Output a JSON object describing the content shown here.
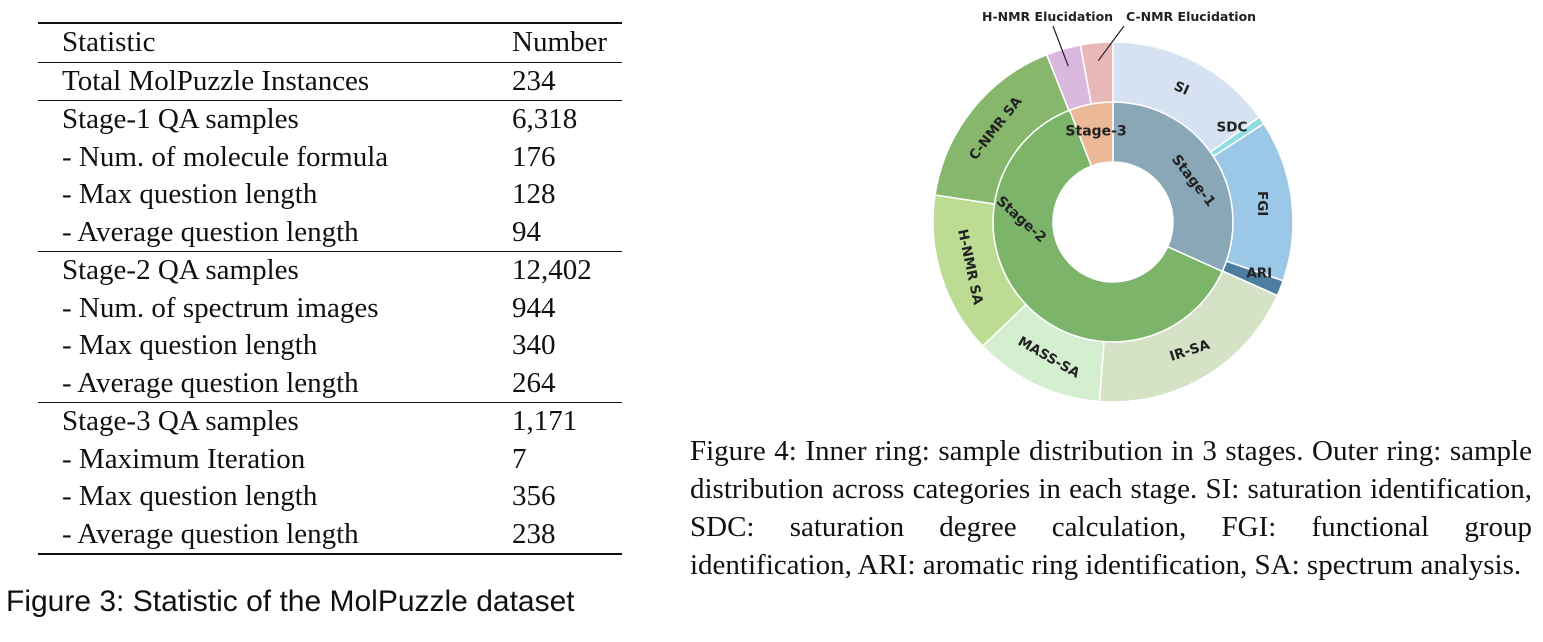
{
  "table": {
    "header": {
      "statistic": "Statistic",
      "number": "Number"
    },
    "rows": [
      {
        "label": "Total MolPuzzle Instances",
        "value": "234",
        "group_start": true
      },
      {
        "label": "Stage-1 QA samples",
        "value": "6,318",
        "group_start": true
      },
      {
        "label": "- Num. of molecule formula",
        "value": "176"
      },
      {
        "label": "- Max question length",
        "value": "128"
      },
      {
        "label": "- Average question length",
        "value": "94"
      },
      {
        "label": "Stage-2 QA samples",
        "value": "12,402",
        "group_start": true
      },
      {
        "label": "- Num. of spectrum images",
        "value": "944"
      },
      {
        "label": "- Max question length",
        "value": "340"
      },
      {
        "label": "- Average question length",
        "value": "264"
      },
      {
        "label": "Stage-3 QA samples",
        "value": "1,171",
        "group_start": true
      },
      {
        "label": "- Maximum Iteration",
        "value": "7"
      },
      {
        "label": "- Max question length",
        "value": "356"
      },
      {
        "label": "- Average question length",
        "value": "238"
      }
    ]
  },
  "figure3_caption": "Figure 3: Statistic of the MolPuzzle dataset",
  "figure4_caption": "Figure 4: Inner ring: sample distribution in 3 stages. Outer ring: sample distribution across categories in each stage. SI: saturation identification, SDC: saturation degree calculation, FGI: functional group identification, ARI: aromatic ring identification, SA: spectrum analysis.",
  "chart_data": {
    "type": "sunburst",
    "inner_ring": [
      {
        "label": "Stage-1",
        "value": 6318,
        "color": "#8aa7b8"
      },
      {
        "label": "Stage-2",
        "value": 12402,
        "color": "#7cb46a"
      },
      {
        "label": "Stage-3",
        "value": 1171,
        "color": "#ecb998"
      }
    ],
    "outer_ring": [
      {
        "label": "SI",
        "stage": "Stage-1",
        "share": 0.151,
        "color": "#d6e2f2"
      },
      {
        "label": "SDC",
        "stage": "Stage-1",
        "share": 0.007,
        "color": "#8fdde2"
      },
      {
        "label": "FGI",
        "stage": "Stage-1",
        "share": 0.145,
        "color": "#9cc8e8"
      },
      {
        "label": "ARI",
        "stage": "Stage-1",
        "share": 0.014,
        "color": "#4d7ea0"
      },
      {
        "label": "IR-SA",
        "stage": "Stage-2",
        "share": 0.195,
        "color": "#d6e2c6"
      },
      {
        "label": "MASS-SA",
        "stage": "Stage-2",
        "share": 0.117,
        "color": "#d4efd0"
      },
      {
        "label": "H-NMR  SA",
        "stage": "Stage-2",
        "share": 0.145,
        "color": "#bcdc94"
      },
      {
        "label": "C-NMR SA",
        "stage": "Stage-2",
        "share": 0.166,
        "color": "#86b76c"
      },
      {
        "label": "H-NMR Elucidation",
        "stage": "Stage-3",
        "share": 0.031,
        "color": "#dbb8de"
      },
      {
        "label": "C-NMR Elucidation",
        "stage": "Stage-3",
        "share": 0.029,
        "color": "#e8b8b8"
      }
    ]
  }
}
